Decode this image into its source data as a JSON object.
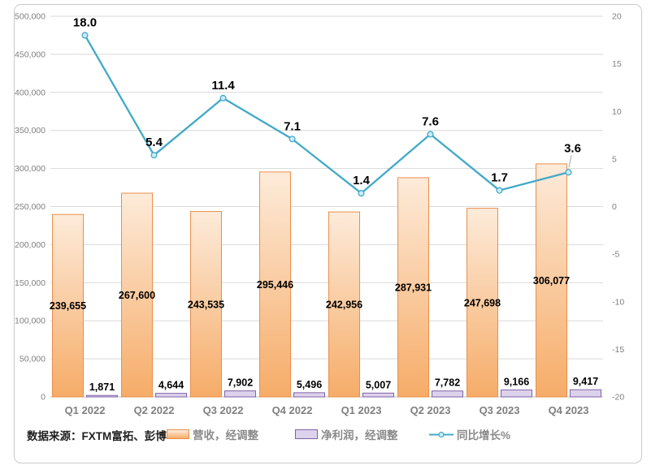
{
  "source_note": "数据来源：FXTM富拓、彭博",
  "colors": {
    "revenue_fill_top": "#FDEBDA",
    "revenue_fill_bottom": "#F6AC68",
    "revenue_border": "#E98F4C",
    "net_fill": "#DCD2EC",
    "net_border": "#8061A8",
    "growth_line": "#41A9C9",
    "growth_marker_fill": "#CDEBF5",
    "grid": "#D9D9D9",
    "baseline": "#BFBFBF",
    "axis_text": "#7F7F7F",
    "category_text": "#7F7F7F",
    "label_text": "#000000",
    "legend_text": "#8A8A8A",
    "source_text": "#1F1F1F",
    "leader": "#A6A6A6",
    "card_border": "#C9C9C9"
  },
  "chart_data": {
    "type": "combo",
    "categories": [
      "Q1 2022",
      "Q2 2022",
      "Q3 2022",
      "Q4 2022",
      "Q1 2023",
      "Q2 2023",
      "Q3 2023",
      "Q4 2023"
    ],
    "series": [
      {
        "name": "营收，经调整",
        "type": "bar",
        "axis": "left",
        "values": [
          239655,
          267600,
          243535,
          295446,
          242956,
          287931,
          247698,
          306077
        ],
        "labels": [
          "239,655",
          "267,600",
          "243,535",
          "295,446",
          "242,956",
          "287,931",
          "247,698",
          "306,077"
        ]
      },
      {
        "name": "净利润，经调整",
        "type": "bar",
        "axis": "left",
        "values": [
          1871,
          4644,
          7902,
          5496,
          5007,
          7782,
          9166,
          9417
        ],
        "labels": [
          "1,871",
          "4,644",
          "7,902",
          "5,496",
          "5,007",
          "7,782",
          "9,166",
          "9,417"
        ]
      },
      {
        "name": "同比增长%",
        "type": "line",
        "axis": "right",
        "values": [
          18.0,
          5.4,
          11.4,
          7.1,
          1.4,
          7.6,
          1.7,
          3.6
        ],
        "labels": [
          "18.0",
          "5.4",
          "11.4",
          "7.1",
          "1.4",
          "7.6",
          "1.7",
          "3.6"
        ]
      }
    ],
    "left_axis": {
      "min": 0,
      "max": 500000,
      "step": 50000,
      "tick_values": [
        0,
        50000,
        100000,
        150000,
        200000,
        250000,
        300000,
        350000,
        400000,
        450000,
        500000
      ],
      "tick_labels": [
        "0",
        "50,000",
        "100,000",
        "150,000",
        "200,000",
        "250,000",
        "300,000",
        "350,000",
        "400,000",
        "450,000",
        "500,000"
      ]
    },
    "right_axis": {
      "min": -20,
      "max": 20,
      "step": 5,
      "tick_values": [
        20,
        15,
        10,
        5,
        0,
        -5,
        -10,
        -15,
        -20
      ],
      "tick_labels": [
        "20",
        "15",
        "10",
        "5",
        "0",
        "-5",
        "-10",
        "-15",
        "-20"
      ]
    },
    "grid": true,
    "legend_position": "bottom",
    "last_line_label_has_leader": true
  }
}
